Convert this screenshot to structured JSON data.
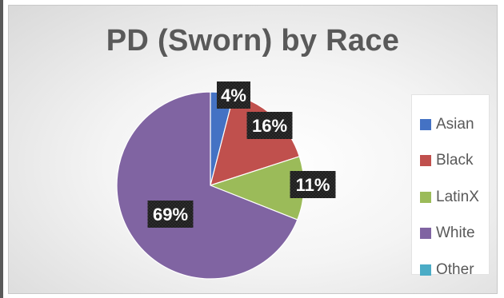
{
  "chart_data": {
    "type": "pie",
    "title": "PD (Sworn) by Race",
    "categories": [
      "Asian",
      "Black",
      "LatinX",
      "White",
      "Other"
    ],
    "values": [
      4,
      16,
      11,
      69,
      0
    ],
    "data_labels": [
      "4%",
      "16%",
      "11%",
      "69%",
      ""
    ],
    "colors": [
      "#4472C4",
      "#C0504D",
      "#9BBB59",
      "#8064A2",
      "#4BACC6"
    ],
    "legend_position": "right"
  },
  "legend": {
    "items": [
      {
        "label": "Asian",
        "color": "#4472C4"
      },
      {
        "label": "Black",
        "color": "#C0504D"
      },
      {
        "label": "LatinX",
        "color": "#9BBB59"
      },
      {
        "label": "White",
        "color": "#8064A2"
      },
      {
        "label": "Other",
        "color": "#4BACC6"
      }
    ]
  }
}
